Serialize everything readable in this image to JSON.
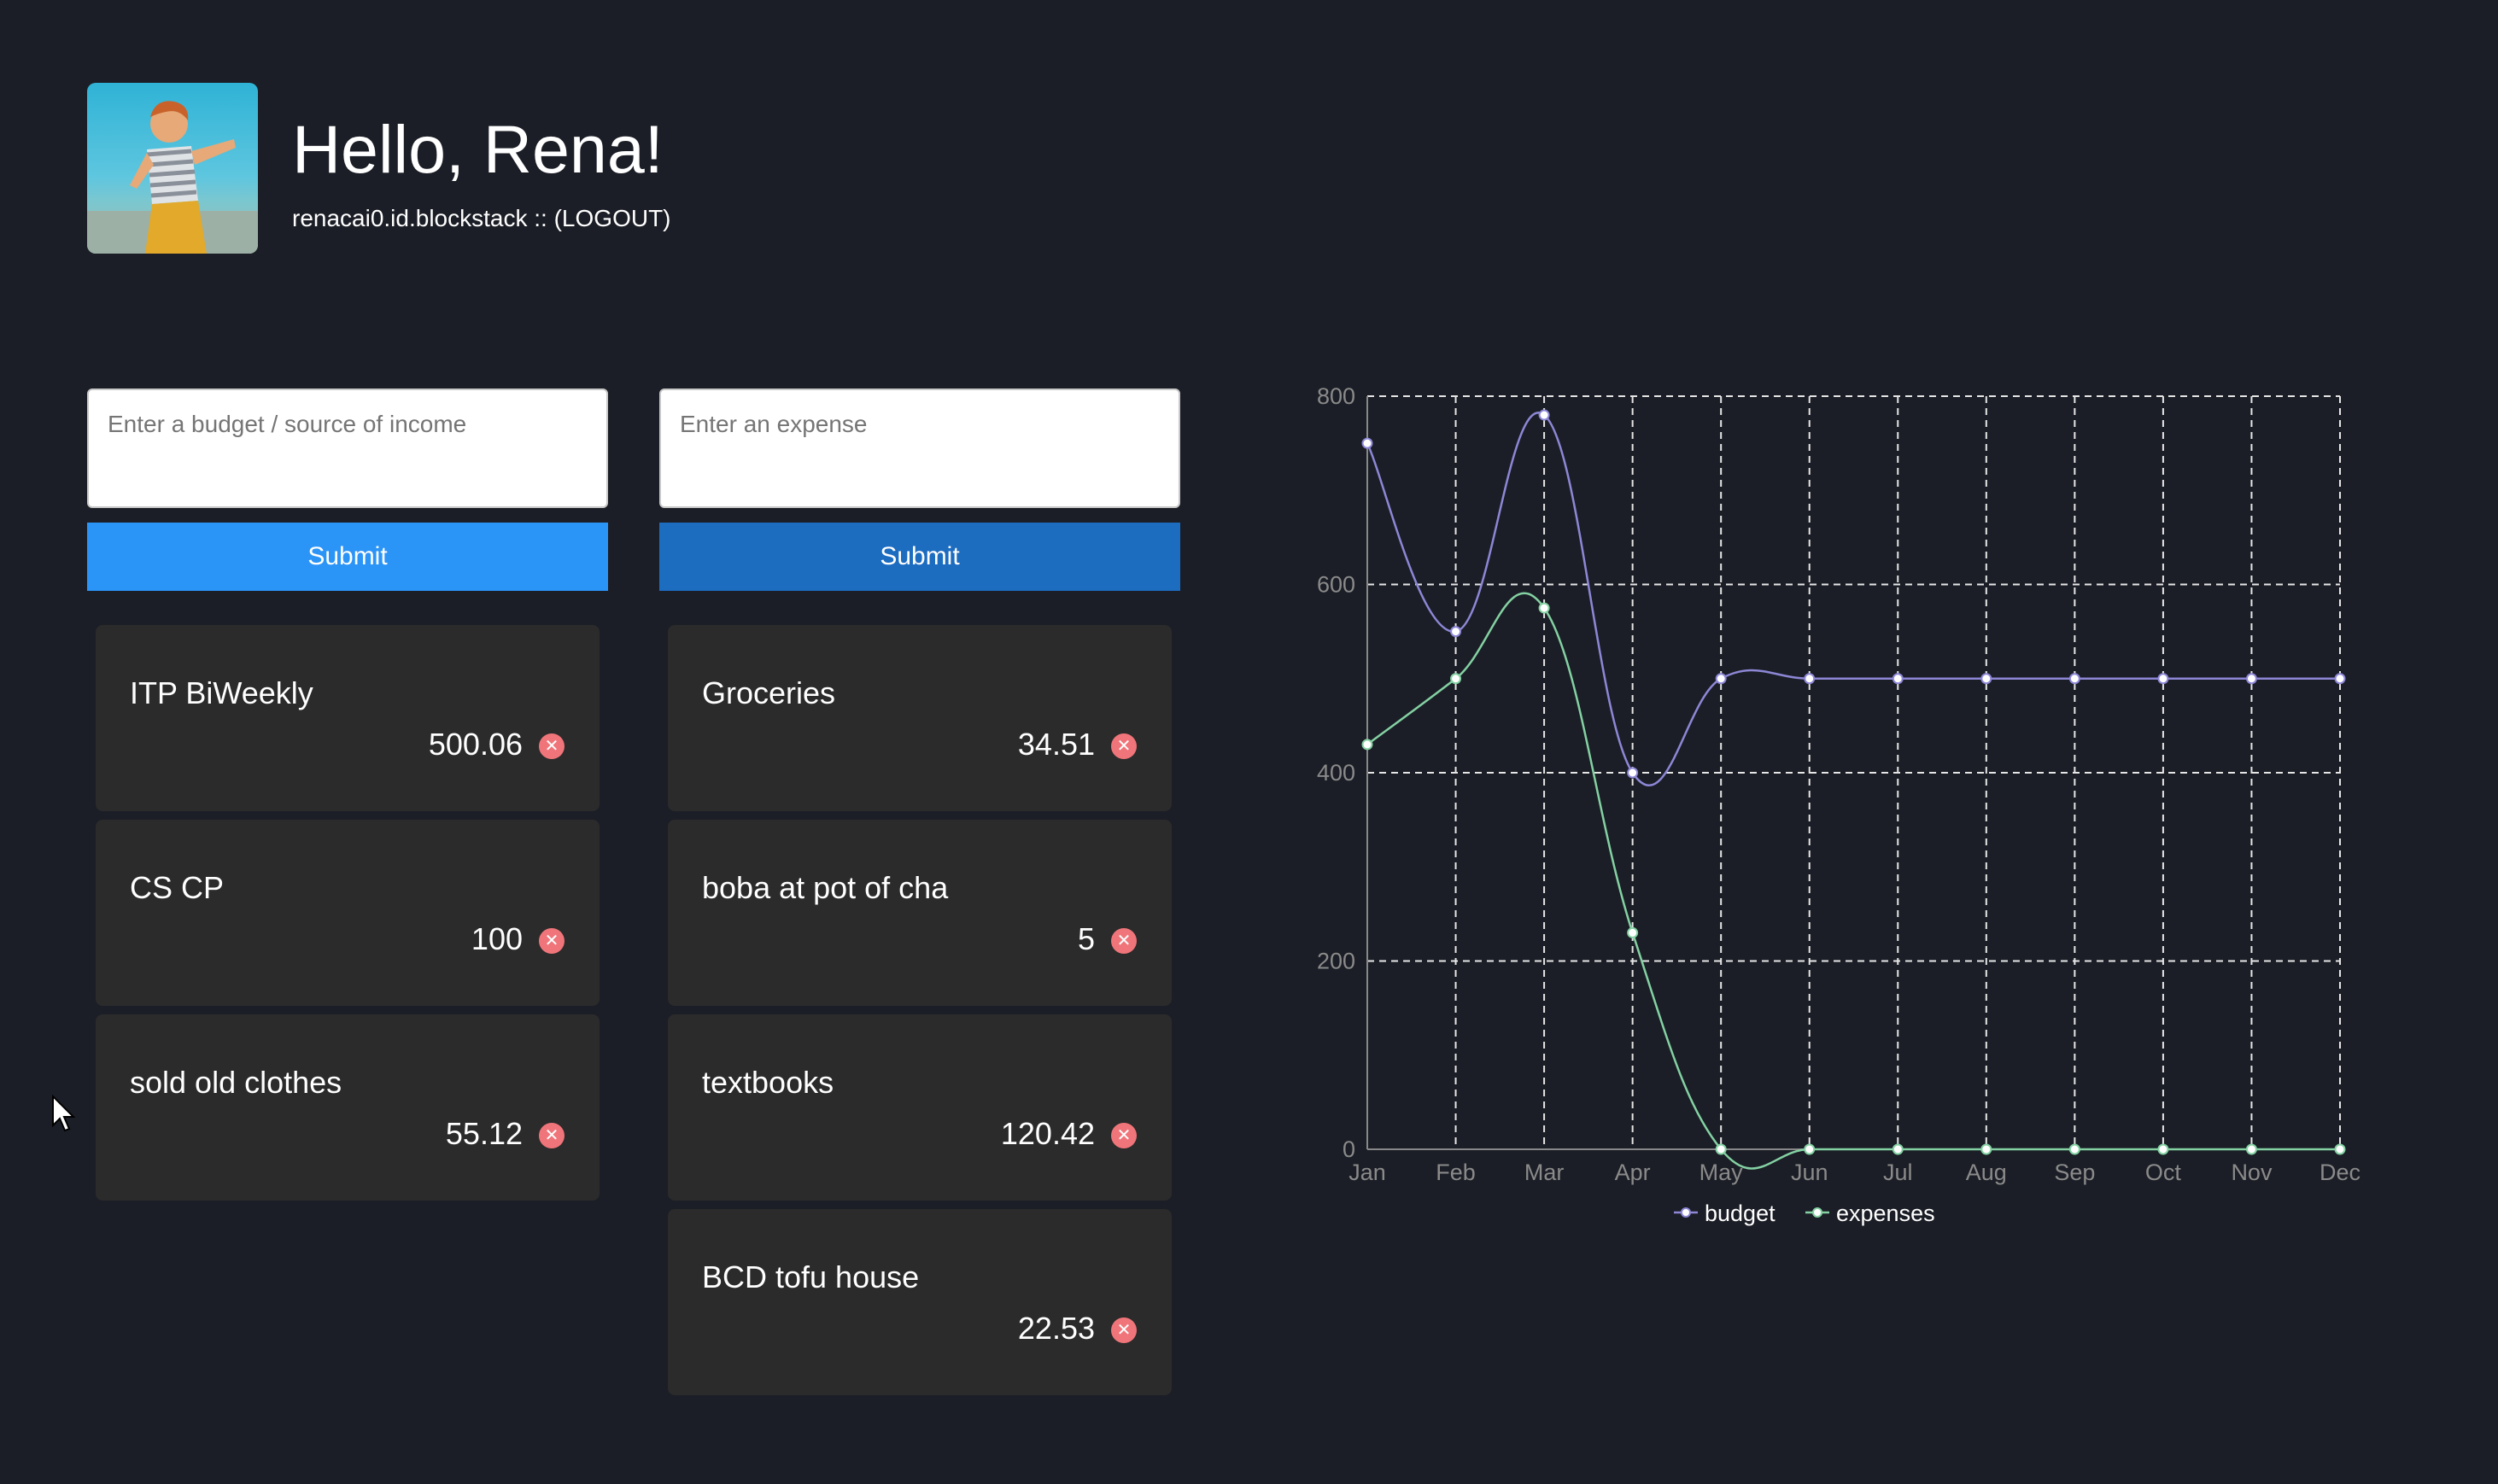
{
  "header": {
    "greeting": "Hello, Rena!",
    "username": "renacai0.id.blockstack",
    "separator": " :: ",
    "logout_label": "(LOGOUT)"
  },
  "budget": {
    "placeholder": "Enter a budget / source of income",
    "submit_label": "Submit",
    "submit_color": "#2b94f7",
    "items": [
      {
        "name": "ITP BiWeekly",
        "amount": "500.06"
      },
      {
        "name": "CS CP",
        "amount": "100"
      },
      {
        "name": "sold old clothes",
        "amount": "55.12"
      }
    ]
  },
  "expenses": {
    "placeholder": "Enter an expense",
    "submit_label": "Submit",
    "submit_color": "#1c6cc0",
    "items": [
      {
        "name": "Groceries",
        "amount": "34.51"
      },
      {
        "name": "boba at pot of cha",
        "amount": "5"
      },
      {
        "name": "textbooks",
        "amount": "120.42"
      },
      {
        "name": "BCD tofu house",
        "amount": "22.53"
      }
    ]
  },
  "icons": {
    "avatar": "avatar-photo",
    "delete": "close-circle-icon",
    "cursor": "mouse-pointer-icon"
  },
  "colors": {
    "background": "#1b1e26",
    "card": "#2b2b2b",
    "delete": "#f0757a"
  },
  "chart_data": {
    "type": "line",
    "categories": [
      "Jan",
      "Feb",
      "Mar",
      "Apr",
      "May",
      "Jun",
      "Jul",
      "Aug",
      "Sep",
      "Oct",
      "Nov",
      "Dec"
    ],
    "ylim": [
      0,
      800
    ],
    "yticks": [
      0,
      200,
      400,
      600,
      800
    ],
    "grid": true,
    "legend": "bottom",
    "series": [
      {
        "name": "budget",
        "color": "#8d87d6",
        "values": [
          750,
          550,
          780,
          400,
          500,
          500,
          500,
          500,
          500,
          500,
          500,
          500
        ]
      },
      {
        "name": "expenses",
        "color": "#84d1a3",
        "values": [
          430,
          500,
          575,
          230,
          0,
          0,
          0,
          0,
          0,
          0,
          0,
          0
        ]
      }
    ]
  }
}
